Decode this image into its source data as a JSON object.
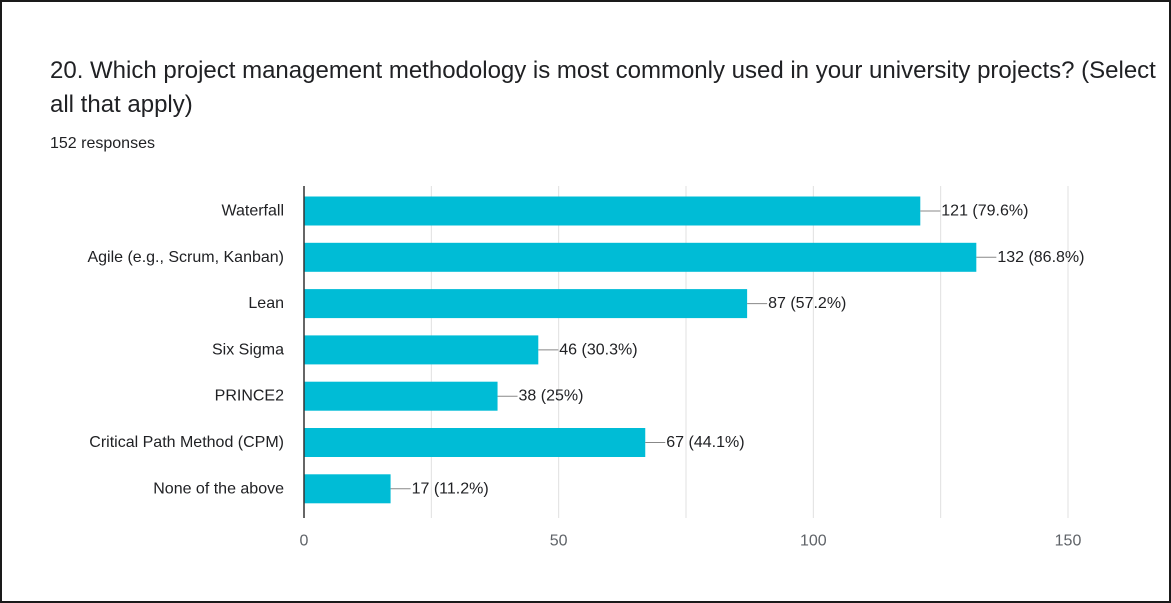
{
  "question": {
    "title": "20. Which project management methodology is most commonly used in your university projects? (Select all that apply)",
    "responses": "152 responses"
  },
  "colors": {
    "bar": "#00bcd6",
    "grid": "#e0e0e0",
    "axis": "#333333",
    "text": "#202124"
  },
  "chart_data": {
    "type": "bar",
    "orientation": "horizontal",
    "categories": [
      "Waterfall",
      "Agile (e.g., Scrum, Kanban)",
      "Lean",
      "Six Sigma",
      "PRINCE2",
      "Critical Path Method (CPM)",
      "None of the above"
    ],
    "values": [
      121,
      132,
      87,
      46,
      38,
      67,
      17
    ],
    "data_labels": [
      "121 (79.6%)",
      "132 (86.8%)",
      "87 (57.2%)",
      "46 (30.3%)",
      "38 (25%)",
      "67 (44.1%)",
      "17 (11.2%)"
    ],
    "xlim": [
      0,
      150
    ],
    "x_ticks": [
      0,
      50,
      100,
      150
    ],
    "grid": true,
    "legend": "none"
  }
}
